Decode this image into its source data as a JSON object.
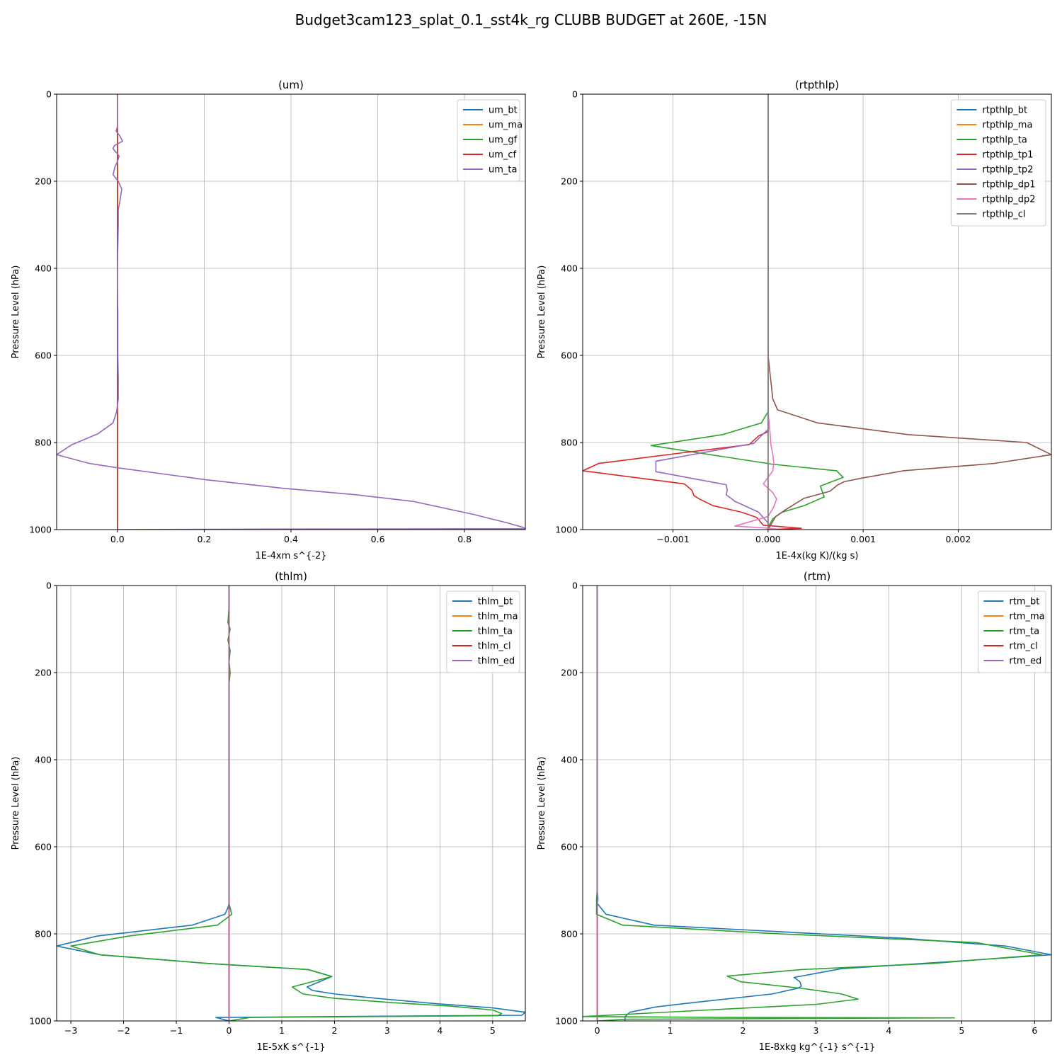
{
  "title": "Budget3cam123_splat_0.1_sst4k_rg CLUBB BUDGET at 260E, -15N",
  "chart_data": [
    {
      "type": "line",
      "title": "(um)",
      "xlabel": "1E-4xm s^{-2}",
      "ylabel": "Pressure Level (hPa)",
      "xlim": [
        -0.14,
        0.94
      ],
      "ylim": [
        1000,
        0
      ],
      "xticks": [
        0.0,
        0.2,
        0.4,
        0.6,
        0.8
      ],
      "xtick_labels": [
        "0.0",
        "0.2",
        "0.4",
        "0.6",
        "0.8"
      ],
      "yticks": [
        0,
        200,
        400,
        600,
        800,
        1000
      ],
      "grid": true,
      "legend": "upper right",
      "series": [
        {
          "name": "um_bt",
          "color": "#1f77b4",
          "x": [
            0,
            0,
            0,
            0,
            0,
            0,
            0
          ],
          "y": [
            0,
            200,
            400,
            600,
            800,
            990,
            1000
          ]
        },
        {
          "name": "um_ma",
          "color": "#ff7f0e",
          "x": [
            0,
            0,
            0,
            0,
            0,
            0,
            0
          ],
          "y": [
            0,
            200,
            400,
            600,
            800,
            990,
            1000
          ]
        },
        {
          "name": "um_gf",
          "color": "#2ca02c",
          "x": [
            0,
            0,
            0,
            0,
            0,
            0,
            0
          ],
          "y": [
            0,
            200,
            400,
            600,
            800,
            990,
            1000
          ]
        },
        {
          "name": "um_cf",
          "color": "#d62728",
          "x": [
            0,
            0,
            0,
            0,
            0,
            0,
            0
          ],
          "y": [
            0,
            200,
            400,
            600,
            800,
            990,
            1000
          ]
        },
        {
          "name": "um_ta",
          "color": "#9467bd",
          "x": [
            0.0,
            0.0,
            0.0,
            -0.003,
            0.005,
            0.012,
            -0.007,
            -0.01,
            0.004,
            0.0,
            -0.006,
            -0.01,
            0.002,
            0.01,
            0.006,
            0.002,
            0.002,
            0.001,
            0.0,
            0.0,
            0.001,
            0.001,
            0.001,
            0.002,
            0.002,
            -0.002,
            -0.01,
            -0.045,
            -0.105,
            -0.14,
            -0.065,
            0.0,
            0.2,
            0.38,
            0.55,
            0.68,
            0.75,
            0.82,
            0.9,
            0.935,
            0.94,
            0.3,
            0.0
          ],
          "y": [
            0,
            40,
            75,
            85,
            95,
            108,
            118,
            125,
            142,
            155,
            168,
            185,
            200,
            218,
            245,
            265,
            300,
            350,
            400,
            450,
            500,
            550,
            600,
            650,
            700,
            730,
            755,
            780,
            805,
            828,
            848,
            858,
            885,
            905,
            920,
            935,
            950,
            965,
            985,
            995,
            998,
            999,
            1000
          ]
        }
      ]
    },
    {
      "type": "line",
      "title": "(rtpthlp)",
      "xlabel": "1E-4x(kg K)/(kg s)",
      "ylabel": "Pressure Level (hPa)",
      "xlim": [
        -0.00195,
        0.00298
      ],
      "ylim": [
        1000,
        0
      ],
      "xticks": [
        -0.001,
        0.0,
        0.001,
        0.002
      ],
      "xtick_labels": [
        "−0.001",
        "0.000",
        "0.001",
        "0.002"
      ],
      "yticks": [
        0,
        200,
        400,
        600,
        800,
        1000
      ],
      "grid": true,
      "legend": "upper right",
      "series": [
        {
          "name": "rtpthlp_bt",
          "color": "#1f77b4",
          "x": [
            0,
            0,
            0,
            0,
            0,
            0
          ],
          "y": [
            0,
            200,
            400,
            600,
            800,
            1000
          ]
        },
        {
          "name": "rtpthlp_ma",
          "color": "#ff7f0e",
          "x": [
            0,
            0,
            0,
            0,
            0,
            0
          ],
          "y": [
            0,
            200,
            400,
            600,
            800,
            1000
          ]
        },
        {
          "name": "rtpthlp_ta",
          "color": "#2ca02c",
          "x": [
            0,
            0,
            0,
            0,
            0,
            0,
            -3e-05,
            -7e-05,
            -0.00048,
            -0.00123,
            5e-05,
            0.00072,
            0.00079,
            0.00055,
            0.00059,
            0.00038,
            0.00015,
            5e-05,
            0.0
          ],
          "y": [
            0,
            200,
            400,
            600,
            700,
            730,
            740,
            755,
            782,
            807,
            850,
            865,
            880,
            900,
            925,
            945,
            960,
            975,
            995
          ]
        },
        {
          "name": "rtpthlp_tp1",
          "color": "#d62728",
          "x": [
            0,
            0,
            0,
            0,
            0,
            0,
            0,
            -0.0001,
            -0.0002,
            -0.00095,
            -0.00178,
            -0.00195,
            -0.00088,
            -0.0008,
            -0.00078,
            -0.00072,
            -0.00058,
            -0.00028,
            -0.00012,
            -5e-05,
            0.00035,
            0.0
          ],
          "y": [
            0,
            200,
            400,
            600,
            700,
            720,
            775,
            785,
            805,
            825,
            848,
            865,
            895,
            910,
            922,
            930,
            945,
            960,
            972,
            990,
            997,
            1000
          ]
        },
        {
          "name": "rtpthlp_tp2",
          "color": "#9467bd",
          "x": [
            0,
            0,
            0,
            0,
            0,
            0,
            0,
            -5e-05,
            -0.00015,
            -0.00118,
            -0.00118,
            -0.00118,
            -0.00044,
            -0.00043,
            -0.00044,
            -0.00035,
            -0.0001,
            0.0,
            0.0
          ],
          "y": [
            0,
            200,
            400,
            600,
            700,
            720,
            770,
            780,
            802,
            843,
            850,
            867,
            897,
            910,
            920,
            935,
            960,
            985,
            1000
          ]
        },
        {
          "name": "rtpthlp_dp1",
          "color": "#8c564b",
          "x": [
            0,
            0,
            0,
            0,
            5e-05,
            0.0001,
            0.00052,
            0.00148,
            0.00272,
            0.00298,
            0.00238,
            0.00142,
            0.00098,
            0.0008,
            0.00073,
            0.00065,
            0.00038,
            0.00018,
            8e-05,
            4e-05,
            0.0
          ],
          "y": [
            0,
            200,
            400,
            600,
            700,
            725,
            755,
            782,
            800,
            828,
            848,
            865,
            882,
            890,
            898,
            912,
            928,
            955,
            970,
            985,
            1000
          ]
        },
        {
          "name": "rtpthlp_dp2",
          "color": "#e377c2",
          "x": [
            0,
            0,
            0,
            0,
            0,
            0,
            2e-05,
            3e-05,
            5e-05,
            6e-05,
            5e-05,
            -5e-05,
            5e-05,
            9e-05,
            6e-05,
            0.0,
            -0.00035,
            -5e-05,
            8e-05,
            0.0
          ],
          "y": [
            0,
            200,
            400,
            600,
            700,
            730,
            775,
            805,
            828,
            848,
            865,
            895,
            915,
            930,
            948,
            970,
            992,
            996,
            998,
            1000
          ]
        },
        {
          "name": "rtpthlp_cl",
          "color": "#7f7f7f",
          "x": [
            0,
            0,
            0,
            0,
            0,
            0
          ],
          "y": [
            0,
            200,
            400,
            600,
            800,
            1000
          ]
        }
      ]
    },
    {
      "type": "line",
      "title": "(thlm)",
      "xlabel": "1E-5xK s^{-1}",
      "ylabel": "Pressure Level (hPa)",
      "xlim": [
        -3.27,
        5.62
      ],
      "ylim": [
        1000,
        0
      ],
      "xticks": [
        -3,
        -2,
        -1,
        0,
        1,
        2,
        3,
        4,
        5
      ],
      "xtick_labels": [
        "−3",
        "−2",
        "−1",
        "0",
        "1",
        "2",
        "3",
        "4",
        "5"
      ],
      "yticks": [
        0,
        200,
        400,
        600,
        800,
        1000
      ],
      "grid": true,
      "legend": "upper right",
      "series": [
        {
          "name": "thlm_bt",
          "color": "#1f77b4",
          "x": [
            0.0,
            0.0,
            -0.02,
            0.02,
            -0.02,
            0.02,
            0.0,
            0.02,
            0.0,
            0.0,
            0.0,
            0.0,
            0.0,
            0.0,
            0.0,
            0.0,
            0.0,
            -0.02,
            -0.08,
            -0.7,
            -2.5,
            -3.27,
            -2.45,
            -0.4,
            1.5,
            1.95,
            1.48,
            1.58,
            2.0,
            2.8,
            3.9,
            5.0,
            5.62,
            5.55,
            2.0,
            -0.25,
            0.0
          ],
          "y": [
            0,
            50,
            85,
            100,
            125,
            150,
            175,
            200,
            225,
            260,
            300,
            400,
            500,
            600,
            650,
            700,
            730,
            740,
            755,
            780,
            805,
            828,
            848,
            868,
            882,
            898,
            922,
            930,
            938,
            948,
            960,
            970,
            980,
            987,
            990,
            992,
            1000
          ]
        },
        {
          "name": "thlm_ma",
          "color": "#ff7f0e",
          "x": [
            0,
            0,
            0,
            0,
            0,
            0
          ],
          "y": [
            0,
            200,
            400,
            600,
            800,
            1000
          ]
        },
        {
          "name": "thlm_ta",
          "color": "#2ca02c",
          "x": [
            0.0,
            0.0,
            -0.02,
            0.02,
            -0.02,
            0.02,
            0.0,
            0.02,
            0.0,
            0.0,
            0.0,
            0.0,
            0.0,
            0.0,
            0.0,
            0.0,
            0.0,
            0.02,
            0.05,
            -0.22,
            -1.9,
            -3.0,
            -2.45,
            -0.4,
            1.5,
            1.95,
            1.2,
            1.4,
            2.0,
            3.1,
            4.2,
            5.0,
            5.17,
            5.1,
            0.4,
            0.0
          ],
          "y": [
            0,
            50,
            85,
            100,
            125,
            150,
            175,
            200,
            225,
            260,
            300,
            400,
            500,
            600,
            650,
            700,
            730,
            740,
            755,
            780,
            805,
            828,
            848,
            868,
            882,
            898,
            922,
            938,
            948,
            958,
            966,
            975,
            983,
            988,
            992,
            1000
          ]
        },
        {
          "name": "thlm_cl",
          "color": "#d62728",
          "x": [
            0,
            0,
            0,
            0,
            0,
            0
          ],
          "y": [
            0,
            200,
            400,
            600,
            800,
            1000
          ]
        },
        {
          "name": "thlm_ed",
          "color": "#9467bd",
          "x": [
            0,
            0,
            0,
            0,
            0,
            0
          ],
          "y": [
            0,
            200,
            400,
            600,
            800,
            1000
          ]
        }
      ]
    },
    {
      "type": "line",
      "title": "(rtm)",
      "xlabel": "1E-8xkg kg^{-1} s^{-1}",
      "ylabel": "Pressure Level (hPa)",
      "xlim": [
        -0.2,
        6.23
      ],
      "ylim": [
        1000,
        0
      ],
      "xticks": [
        0,
        1,
        2,
        3,
        4,
        5,
        6
      ],
      "xtick_labels": [
        "0",
        "1",
        "2",
        "3",
        "4",
        "5",
        "6"
      ],
      "yticks": [
        0,
        200,
        400,
        600,
        800,
        1000
      ],
      "grid": true,
      "legend": "upper right",
      "series": [
        {
          "name": "rtm_bt",
          "color": "#1f77b4",
          "x": [
            0.0,
            0.0,
            0.0,
            0.0,
            0.0,
            0.01,
            0.0,
            0.12,
            0.78,
            2.5,
            4.2,
            5.6,
            6.23,
            5.0,
            3.35,
            2.7,
            2.78,
            2.8,
            2.75,
            2.4,
            1.2,
            0.8,
            0.45,
            0.38,
            0.38
          ],
          "y": [
            0,
            200,
            400,
            600,
            700,
            720,
            730,
            755,
            780,
            795,
            810,
            828,
            848,
            862,
            880,
            900,
            910,
            920,
            925,
            938,
            960,
            968,
            980,
            990,
            1000
          ]
        },
        {
          "name": "rtm_ma",
          "color": "#ff7f0e",
          "x": [
            0,
            0,
            0,
            0,
            0,
            0
          ],
          "y": [
            0,
            200,
            400,
            600,
            800,
            1000
          ]
        },
        {
          "name": "rtm_ta",
          "color": "#2ca02c",
          "x": [
            0.0,
            0.0,
            0.0,
            0.0,
            0.0,
            -0.01,
            -0.01,
            0.35,
            2.5,
            5.2,
            6.1,
            4.6,
            2.8,
            1.78,
            1.97,
            2.8,
            3.35,
            3.58,
            3.0,
            1.5,
            -0.2,
            2.0,
            4.9,
            0.4,
            0.0
          ],
          "y": [
            0,
            200,
            400,
            600,
            700,
            720,
            755,
            780,
            800,
            820,
            848,
            868,
            882,
            897,
            910,
            925,
            938,
            950,
            962,
            975,
            990,
            992,
            993,
            996,
            1000
          ]
        },
        {
          "name": "rtm_cl",
          "color": "#d62728",
          "x": [
            0,
            0,
            0,
            0,
            0,
            0
          ],
          "y": [
            0,
            200,
            400,
            600,
            800,
            1000
          ]
        },
        {
          "name": "rtm_ed",
          "color": "#9467bd",
          "x": [
            0,
            0,
            0,
            0,
            0,
            0
          ],
          "y": [
            0,
            200,
            400,
            600,
            800,
            1000
          ]
        }
      ]
    }
  ]
}
